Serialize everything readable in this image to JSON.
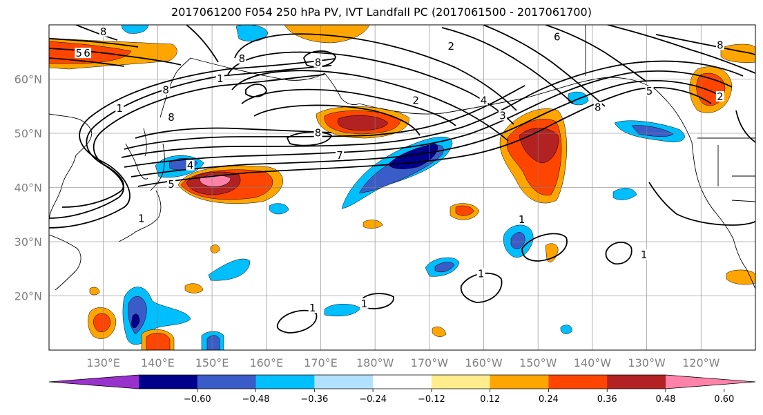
{
  "title": "2017061200 F054 250 hPa PV, IVT Landfall PC (2017061500 - 2017061700)",
  "map": {
    "lon_range": [
      120,
      250
    ],
    "lat_range": [
      10,
      70
    ],
    "lat_ticks": [
      {
        "value": 20,
        "label": "20°N"
      },
      {
        "value": 30,
        "label": "30°N"
      },
      {
        "value": 40,
        "label": "40°N"
      },
      {
        "value": 50,
        "label": "50°N"
      },
      {
        "value": 60,
        "label": "60°N"
      }
    ],
    "lon_ticks": [
      {
        "value": 130,
        "label": "130°E"
      },
      {
        "value": 140,
        "label": "140°E"
      },
      {
        "value": 150,
        "label": "150°E"
      },
      {
        "value": 160,
        "label": "160°E"
      },
      {
        "value": 170,
        "label": "170°E"
      },
      {
        "value": 180,
        "label": "180°W"
      },
      {
        "value": 190,
        "label": "170°W"
      },
      {
        "value": 200,
        "label": "160°W"
      },
      {
        "value": 210,
        "label": "150°W"
      },
      {
        "value": 220,
        "label": "140°W"
      },
      {
        "value": 230,
        "label": "130°W"
      },
      {
        "value": 240,
        "label": "120°W"
      }
    ],
    "grid": true,
    "contour_labels": [
      {
        "text": "8",
        "lon": 130,
        "lat": 68.5
      },
      {
        "text": "5",
        "lon": 125.5,
        "lat": 64.5
      },
      {
        "text": "6",
        "lon": 127,
        "lat": 64.5
      },
      {
        "text": "8",
        "lon": 155.5,
        "lat": 63.5
      },
      {
        "text": "8",
        "lon": 169.5,
        "lat": 62.8
      },
      {
        "text": "2",
        "lon": 194,
        "lat": 65.8
      },
      {
        "text": "6",
        "lon": 213.5,
        "lat": 67.5
      },
      {
        "text": "8",
        "lon": 243.5,
        "lat": 66
      },
      {
        "text": "1",
        "lon": 151.5,
        "lat": 59.8
      },
      {
        "text": "8",
        "lon": 141.5,
        "lat": 57.7
      },
      {
        "text": "1",
        "lon": 133,
        "lat": 54.3
      },
      {
        "text": "8",
        "lon": 142.5,
        "lat": 52.7
      },
      {
        "text": "2",
        "lon": 187.5,
        "lat": 55.8
      },
      {
        "text": "4",
        "lon": 200,
        "lat": 55.8
      },
      {
        "text": "3",
        "lon": 203.5,
        "lat": 53
      },
      {
        "text": "5",
        "lon": 230.5,
        "lat": 57.5
      },
      {
        "text": "2",
        "lon": 243.5,
        "lat": 56.5
      },
      {
        "text": "8",
        "lon": 221,
        "lat": 54.5
      },
      {
        "text": "8",
        "lon": 169.5,
        "lat": 49.8
      },
      {
        "text": "7",
        "lon": 173.5,
        "lat": 45.7
      },
      {
        "text": "4",
        "lon": 146,
        "lat": 43.8
      },
      {
        "text": "5",
        "lon": 142.5,
        "lat": 40.3
      },
      {
        "text": "1",
        "lon": 137,
        "lat": 34
      },
      {
        "text": "1",
        "lon": 207,
        "lat": 33.8
      },
      {
        "text": "1",
        "lon": 229.5,
        "lat": 27.3
      },
      {
        "text": "1",
        "lon": 199.5,
        "lat": 23.8
      },
      {
        "text": "1",
        "lon": 178,
        "lat": 18.3
      },
      {
        "text": "1",
        "lon": 168.5,
        "lat": 17.5
      }
    ]
  },
  "colorbar": {
    "levels": [
      "−0.60",
      "−0.48",
      "−0.36",
      "−0.24",
      "−0.12",
      "0.12",
      "0.24",
      "0.36",
      "0.48",
      "0.60"
    ],
    "colors": [
      "#9932cc",
      "#00008b",
      "#3a5cc8",
      "#00bfff",
      "#b0e2ff",
      "#ffffff",
      "#ffec8b",
      "#ffa500",
      "#ff4500",
      "#b22222",
      "#ff82ab"
    ],
    "extend": "both"
  }
}
